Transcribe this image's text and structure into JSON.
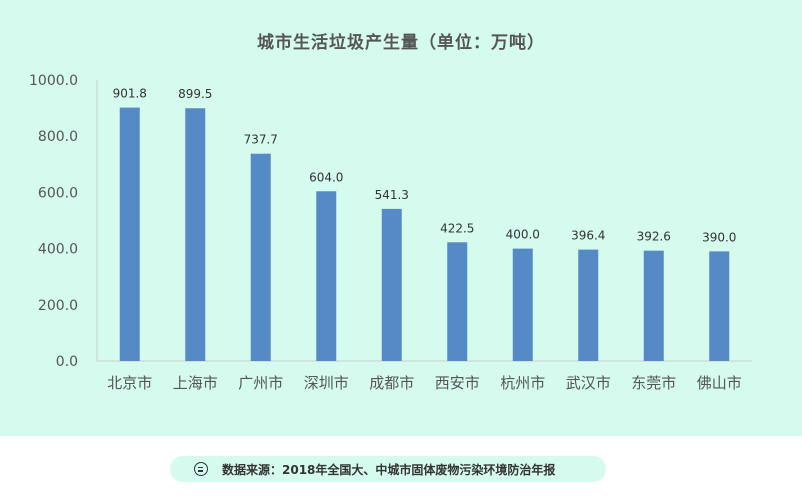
{
  "chart_data": {
    "type": "bar",
    "title": "城市生活垃圾产生量（单位：万吨）",
    "categories": [
      "北京市",
      "上海市",
      "广州市",
      "深圳市",
      "成都市",
      "西安市",
      "杭州市",
      "武汉市",
      "东莞市",
      "佛山市"
    ],
    "values": [
      901.8,
      899.5,
      737.7,
      604.0,
      541.3,
      422.5,
      400.0,
      396.4,
      392.6,
      390.0
    ],
    "value_labels": [
      "901.8",
      "899.5",
      "737.7",
      "604.0",
      "541.3",
      "422.5",
      "400.0",
      "396.4",
      "392.6",
      "390.0"
    ],
    "ylim": [
      0,
      1000
    ],
    "yticks": [
      "0.0",
      "200.0",
      "400.0",
      "600.0",
      "800.0",
      "1000.0"
    ],
    "ytick_values": [
      0,
      200,
      400,
      600,
      800,
      1000
    ],
    "grid": false,
    "bar_color": "#558ac7"
  },
  "footer": {
    "source_text": "数据来源：2018年全国大、中城市固体废物污染环境防治年报"
  }
}
